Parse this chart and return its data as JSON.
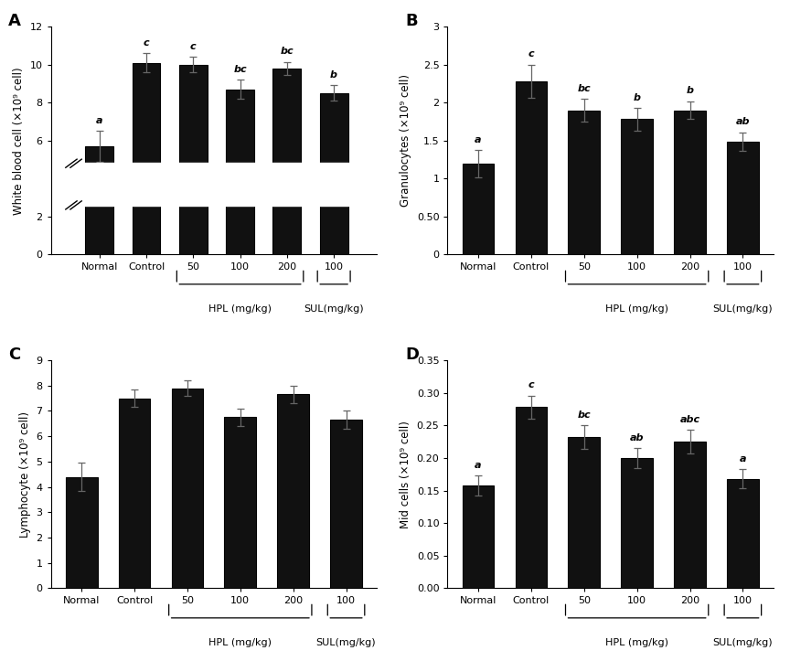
{
  "panels": [
    "A",
    "B",
    "C",
    "D"
  ],
  "categories": [
    "Normal",
    "Control",
    "50",
    "100",
    "200",
    "100"
  ],
  "A": {
    "ylabel": "White blood cell (×10⁹ cell)",
    "values": [
      5.7,
      10.1,
      10.0,
      8.7,
      9.8,
      8.5
    ],
    "errors": [
      0.8,
      0.5,
      0.4,
      0.5,
      0.35,
      0.4
    ],
    "letters": [
      "a",
      "c",
      "c",
      "bc",
      "bc",
      "b"
    ],
    "ylim": [
      0,
      12
    ],
    "yticks": [
      0,
      2,
      4,
      6,
      8,
      10,
      12
    ],
    "break_y": true,
    "break_from": 2.6,
    "break_to": 4.8
  },
  "B": {
    "ylabel": "Granulocytes (×10⁹ cell)",
    "values": [
      1.2,
      2.28,
      1.9,
      1.78,
      1.9,
      1.49
    ],
    "errors": [
      0.18,
      0.22,
      0.15,
      0.15,
      0.12,
      0.12
    ],
    "letters": [
      "a",
      "c",
      "bc",
      "b",
      "b",
      "ab"
    ],
    "ylim": [
      0,
      3.0
    ],
    "yticks": [
      0.0,
      0.5,
      1.0,
      1.5,
      2.0,
      2.5,
      3.0
    ],
    "break_y": false
  },
  "C": {
    "ylabel": "Lymphocyte (×10⁹ cell)",
    "values": [
      4.4,
      7.5,
      7.9,
      6.75,
      7.65,
      6.65
    ],
    "errors": [
      0.55,
      0.35,
      0.3,
      0.35,
      0.35,
      0.35
    ],
    "letters": [
      "",
      "",
      "",
      "",
      "",
      ""
    ],
    "ylim": [
      0,
      9
    ],
    "yticks": [
      0,
      1,
      2,
      3,
      4,
      5,
      6,
      7,
      8,
      9
    ],
    "break_y": false
  },
  "D": {
    "ylabel": "Mid cells (×10⁹ cell)",
    "values": [
      0.158,
      0.278,
      0.232,
      0.2,
      0.225,
      0.168
    ],
    "errors": [
      0.015,
      0.018,
      0.018,
      0.015,
      0.018,
      0.015
    ],
    "letters": [
      "a",
      "c",
      "bc",
      "ab",
      "abc",
      "a"
    ],
    "ylim": [
      0.0,
      0.35
    ],
    "yticks": [
      0.0,
      0.05,
      0.1,
      0.15,
      0.2,
      0.25,
      0.3,
      0.35
    ],
    "break_y": false
  },
  "bar_color": "#111111",
  "bar_edgecolor": "#000000",
  "background_color": "#ffffff",
  "hpl_label": "HPL (mg/kg)",
  "sul_label": "SUL(mg/kg)"
}
